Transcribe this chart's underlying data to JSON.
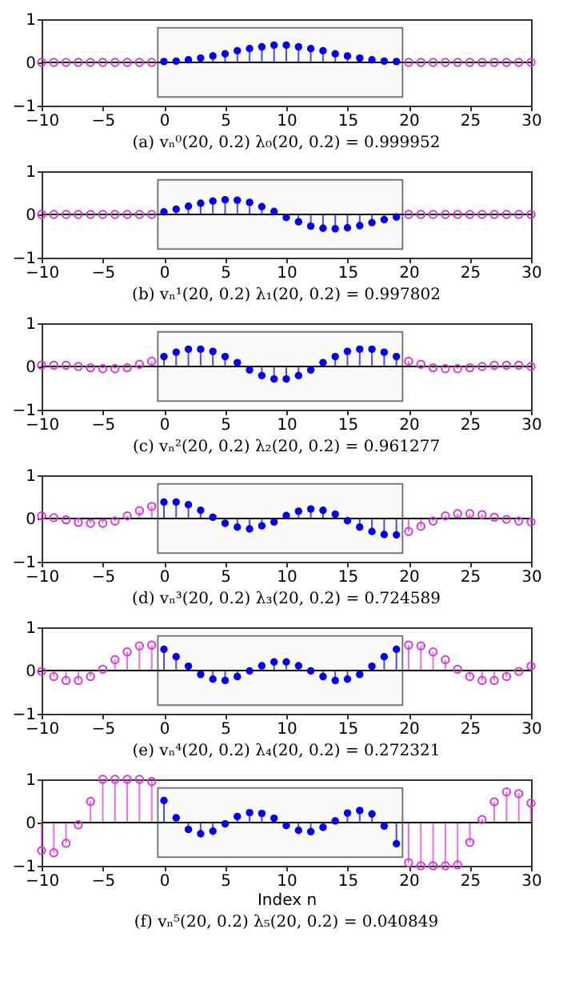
{
  "chart_data": [
    {
      "type": "lollipop",
      "title": "(a) vₙ⁰(20, 0.2)   λ₀(20, 0.2) = 0.999952",
      "xlim": [
        -10,
        30
      ],
      "xticks": [
        -10,
        -5,
        0,
        5,
        10,
        15,
        20,
        25,
        30
      ],
      "ylim": [
        -1,
        1
      ],
      "yticks": [
        -1,
        0,
        1
      ],
      "grid": false,
      "legend": false,
      "marker": "circle",
      "ref_lines": [
        {
          "axis": "y",
          "value": 0
        }
      ],
      "bands": [
        {
          "axis": "x",
          "from": -0.5,
          "to": 19.5
        }
      ],
      "series": [
        {
          "color": "#0000ee",
          "x": [
            0,
            1,
            2,
            3,
            4,
            5,
            6,
            7,
            8,
            9,
            10,
            11,
            12,
            13,
            14,
            15,
            16,
            17,
            18,
            19
          ],
          "values": [
            0.02,
            0.03,
            0.06,
            0.1,
            0.15,
            0.2,
            0.27,
            0.32,
            0.36,
            0.4,
            0.4,
            0.36,
            0.32,
            0.27,
            0.2,
            0.15,
            0.1,
            0.06,
            0.03,
            0.02
          ]
        },
        {
          "color": "#dd33dd",
          "x": [
            -10,
            -9,
            -8,
            -7,
            -6,
            -5,
            -4,
            -3,
            -2,
            -1,
            20,
            21,
            22,
            23,
            24,
            25,
            26,
            27,
            28,
            29,
            30
          ],
          "values": [
            0,
            0,
            0,
            0,
            0,
            0,
            0,
            0,
            0,
            0,
            0,
            0,
            0,
            0,
            0,
            0,
            0,
            0,
            0,
            0,
            0
          ]
        }
      ]
    },
    {
      "type": "lollipop",
      "title": "(b) vₙ¹(20, 0.2)   λ₁(20, 0.2) = 0.997802",
      "xlim": [
        -10,
        30
      ],
      "xticks": [
        -10,
        -5,
        0,
        5,
        10,
        15,
        20,
        25,
        30
      ],
      "ylim": [
        -1,
        1
      ],
      "yticks": [
        -1,
        0,
        1
      ],
      "grid": false,
      "legend": false,
      "marker": "circle",
      "ref_lines": [
        {
          "axis": "y",
          "value": 0
        }
      ],
      "bands": [
        {
          "axis": "x",
          "from": -0.5,
          "to": 19.5
        }
      ],
      "series": [
        {
          "color": "#0000ee",
          "x": [
            0,
            1,
            2,
            3,
            4,
            5,
            6,
            7,
            8,
            9,
            10,
            11,
            12,
            13,
            14,
            15,
            16,
            17,
            18,
            19
          ],
          "values": [
            0.06,
            0.12,
            0.19,
            0.26,
            0.31,
            0.34,
            0.33,
            0.28,
            0.18,
            0.07,
            -0.07,
            -0.17,
            -0.27,
            -0.32,
            -0.33,
            -0.31,
            -0.26,
            -0.19,
            -0.12,
            -0.06
          ]
        },
        {
          "color": "#dd33dd",
          "x": [
            -10,
            -9,
            -8,
            -7,
            -6,
            -5,
            -4,
            -3,
            -2,
            -1,
            20,
            21,
            22,
            23,
            24,
            25,
            26,
            27,
            28,
            29,
            30
          ],
          "values": [
            0,
            0,
            0,
            0,
            0,
            0,
            0,
            0,
            0,
            0,
            0,
            0,
            0,
            0,
            0,
            0,
            0,
            0,
            0,
            0,
            0
          ]
        }
      ]
    },
    {
      "type": "lollipop",
      "title": "(c) vₙ²(20, 0.2)   λ₂(20, 0.2) = 0.961277",
      "xlim": [
        -10,
        30
      ],
      "xticks": [
        -10,
        -5,
        0,
        5,
        10,
        15,
        20,
        25,
        30
      ],
      "ylim": [
        -1,
        1
      ],
      "yticks": [
        -1,
        0,
        1
      ],
      "grid": false,
      "legend": false,
      "marker": "circle",
      "ref_lines": [
        {
          "axis": "y",
          "value": 0
        }
      ],
      "bands": [
        {
          "axis": "x",
          "from": -0.5,
          "to": 19.5
        }
      ],
      "series": [
        {
          "color": "#0000ee",
          "x": [
            0,
            1,
            2,
            3,
            4,
            5,
            6,
            7,
            8,
            9,
            10,
            11,
            12,
            13,
            14,
            15,
            16,
            17,
            18,
            19
          ],
          "values": [
            0.23,
            0.33,
            0.4,
            0.4,
            0.35,
            0.23,
            0.09,
            -0.08,
            -0.21,
            -0.29,
            -0.29,
            -0.21,
            -0.08,
            0.09,
            0.23,
            0.35,
            0.4,
            0.4,
            0.33,
            0.23
          ]
        },
        {
          "color": "#dd33dd",
          "x": [
            -10,
            -9,
            -8,
            -7,
            -6,
            -5,
            -4,
            -3,
            -2,
            -1,
            20,
            21,
            22,
            23,
            24,
            25,
            26,
            27,
            28,
            29,
            30
          ],
          "values": [
            0.03,
            0.03,
            0.03,
            0,
            -0.03,
            -0.05,
            -0.05,
            -0.03,
            0.05,
            0.12,
            0.12,
            0.05,
            -0.03,
            -0.05,
            -0.05,
            -0.03,
            0,
            0.03,
            0.03,
            0.03,
            0
          ]
        }
      ]
    },
    {
      "type": "lollipop",
      "title": "(d) vₙ³(20, 0.2)   λ₃(20, 0.2) = 0.724589",
      "xlim": [
        -10,
        30
      ],
      "xticks": [
        -10,
        -5,
        0,
        5,
        10,
        15,
        20,
        25,
        30
      ],
      "ylim": [
        -1,
        1
      ],
      "yticks": [
        -1,
        0,
        1
      ],
      "grid": false,
      "legend": false,
      "marker": "circle",
      "ref_lines": [
        {
          "axis": "y",
          "value": 0
        }
      ],
      "bands": [
        {
          "axis": "x",
          "from": -0.5,
          "to": 19.5
        }
      ],
      "series": [
        {
          "color": "#0000ee",
          "x": [
            0,
            1,
            2,
            3,
            4,
            5,
            6,
            7,
            8,
            9,
            10,
            11,
            12,
            13,
            14,
            15,
            16,
            17,
            18,
            19
          ],
          "values": [
            0.38,
            0.38,
            0.32,
            0.19,
            0.03,
            -0.11,
            -0.2,
            -0.24,
            -0.17,
            -0.08,
            0.07,
            0.17,
            0.22,
            0.19,
            0.1,
            -0.05,
            -0.2,
            -0.3,
            -0.37,
            -0.38
          ]
        },
        {
          "color": "#dd33dd",
          "x": [
            -10,
            -9,
            -8,
            -7,
            -6,
            -5,
            -4,
            -3,
            -2,
            -1,
            20,
            21,
            22,
            23,
            24,
            25,
            26,
            27,
            28,
            29,
            30
          ],
          "values": [
            0.06,
            0.02,
            -0.03,
            -0.09,
            -0.11,
            -0.11,
            -0.06,
            0.06,
            0.18,
            0.28,
            -0.3,
            -0.18,
            -0.06,
            0.06,
            0.11,
            0.11,
            0.09,
            0.03,
            -0.02,
            -0.06,
            -0.08
          ]
        }
      ]
    },
    {
      "type": "lollipop",
      "title": "(e) vₙ⁴(20, 0.2)   λ₄(20, 0.2) = 0.272321",
      "xlim": [
        -10,
        30
      ],
      "xticks": [
        -10,
        -5,
        0,
        5,
        10,
        15,
        20,
        25,
        30
      ],
      "ylim": [
        -1,
        1
      ],
      "yticks": [
        -1,
        0,
        1
      ],
      "grid": false,
      "legend": false,
      "marker": "circle",
      "ref_lines": [
        {
          "axis": "y",
          "value": 0
        }
      ],
      "bands": [
        {
          "axis": "x",
          "from": -0.5,
          "to": 19.5
        }
      ],
      "series": [
        {
          "color": "#0000ee",
          "x": [
            0,
            1,
            2,
            3,
            4,
            5,
            6,
            7,
            8,
            9,
            10,
            11,
            12,
            13,
            14,
            15,
            16,
            17,
            18,
            19
          ],
          "values": [
            0.49,
            0.32,
            0.1,
            -0.09,
            -0.2,
            -0.23,
            -0.14,
            -0.01,
            0.11,
            0.2,
            0.2,
            0.11,
            -0.01,
            -0.14,
            -0.23,
            -0.2,
            -0.09,
            0.1,
            0.32,
            0.49
          ]
        },
        {
          "color": "#dd33dd",
          "x": [
            -10,
            -9,
            -8,
            -7,
            -6,
            -5,
            -4,
            -3,
            -2,
            -1,
            20,
            21,
            22,
            23,
            24,
            25,
            26,
            27,
            28,
            29,
            30
          ],
          "values": [
            -0.02,
            -0.14,
            -0.23,
            -0.23,
            -0.14,
            0.03,
            0.25,
            0.43,
            0.57,
            0.59,
            0.59,
            0.57,
            0.43,
            0.25,
            0.03,
            -0.14,
            -0.23,
            -0.23,
            -0.14,
            -0.02,
            0.1
          ]
        }
      ]
    },
    {
      "type": "lollipop",
      "title": "(f) vₙ⁵(20, 0.2)   λ₅(20, 0.2) = 0.040849",
      "xlabel": "Index n",
      "xlim": [
        -10,
        30
      ],
      "xticks": [
        -10,
        -5,
        0,
        5,
        10,
        15,
        20,
        25,
        30
      ],
      "ylim": [
        -1,
        1
      ],
      "yticks": [
        -1,
        0,
        1
      ],
      "grid": false,
      "legend": false,
      "marker": "circle",
      "ref_lines": [
        {
          "axis": "y",
          "value": 0
        }
      ],
      "bands": [
        {
          "axis": "x",
          "from": -0.5,
          "to": 19.5
        }
      ],
      "series": [
        {
          "color": "#0000ee",
          "x": [
            0,
            1,
            2,
            3,
            4,
            5,
            6,
            7,
            8,
            9,
            10,
            11,
            12,
            13,
            14,
            15,
            16,
            17,
            18,
            19
          ],
          "values": [
            0.51,
            0.11,
            -0.16,
            -0.26,
            -0.2,
            -0.03,
            0.14,
            0.23,
            0.21,
            0.1,
            -0.07,
            -0.18,
            -0.21,
            -0.11,
            0.04,
            0.22,
            0.28,
            0.2,
            -0.08,
            -0.49
          ]
        },
        {
          "color": "#dd33dd",
          "x": [
            -10,
            -9,
            -8,
            -7,
            -6,
            -5,
            -4,
            -3,
            -2,
            -1,
            20,
            21,
            22,
            23,
            24,
            25,
            26,
            27,
            28,
            29,
            30
          ],
          "values": [
            -0.65,
            -0.7,
            -0.48,
            -0.05,
            0.49,
            1,
            1,
            1,
            1,
            0.95,
            -0.93,
            -1,
            -1,
            -1,
            -0.98,
            -0.46,
            0.07,
            0.48,
            0.71,
            0.67,
            0.45
          ]
        }
      ]
    }
  ]
}
